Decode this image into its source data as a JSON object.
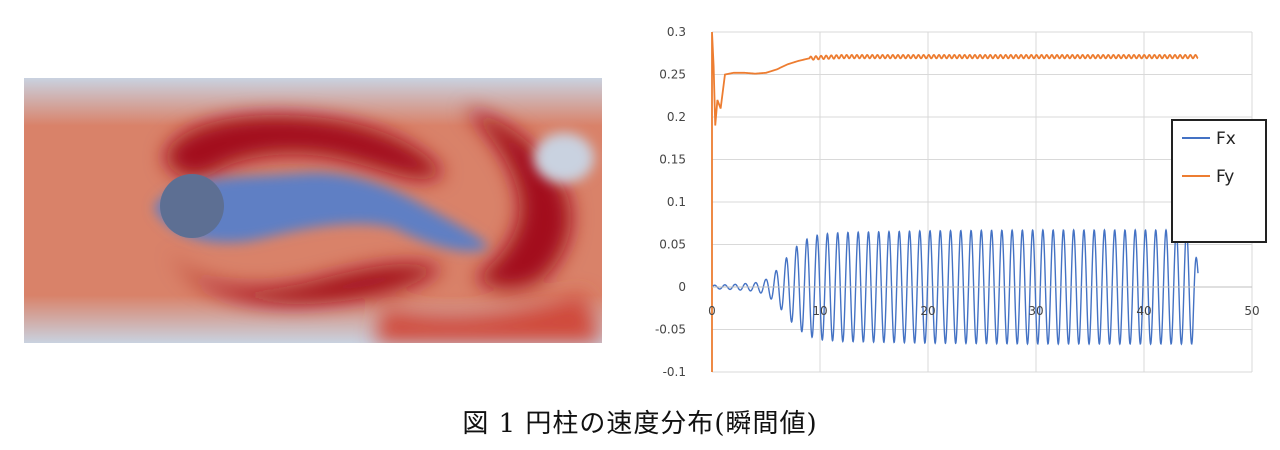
{
  "caption": "図 1  円柱の速度分布(瞬間値)",
  "flow": {
    "colors": {
      "high": "#a30f1c",
      "mid_high": "#d04a3a",
      "mid": "#d98269",
      "low_mid": "#c9d2e0",
      "low": "#5f7fc4",
      "cylinder": "#5d6f93"
    }
  },
  "chart_data": {
    "type": "line",
    "title": "",
    "xlabel": "",
    "ylabel": "",
    "xlim": [
      0,
      50
    ],
    "ylim": [
      -0.1,
      0.3
    ],
    "x_ticks": [
      "0",
      "10",
      "20",
      "30",
      "40",
      "50"
    ],
    "y_ticks": [
      "0.3",
      "0.25",
      "0.2",
      "0.15",
      "0.1",
      "0.05",
      "0",
      "-0.05",
      "-0.1"
    ],
    "grid": true,
    "legend_position": "right",
    "series": [
      {
        "name": "Fx",
        "color": "#4472c4",
        "t_end": 45,
        "period": 0.95,
        "envelope": {
          "t": [
            0,
            2,
            4,
            5,
            6,
            7,
            8,
            9,
            10,
            12,
            20,
            30,
            40,
            44.5,
            45
          ],
          "amp": [
            0.002,
            0.003,
            0.005,
            0.009,
            0.02,
            0.036,
            0.05,
            0.058,
            0.062,
            0.064,
            0.066,
            0.067,
            0.067,
            0.067,
            0.022
          ]
        }
      },
      {
        "name": "Fy",
        "color": "#ed7d31",
        "t_end": 45,
        "points": [
          [
            0,
            0.3
          ],
          [
            0.15,
            0.26
          ],
          [
            0.3,
            0.19
          ],
          [
            0.5,
            0.22
          ],
          [
            0.8,
            0.21
          ],
          [
            1.2,
            0.25
          ],
          [
            2,
            0.252
          ],
          [
            3,
            0.252
          ],
          [
            4,
            0.251
          ],
          [
            5,
            0.252
          ],
          [
            6,
            0.256
          ],
          [
            7,
            0.262
          ],
          [
            8,
            0.266
          ],
          [
            9,
            0.269
          ],
          [
            10,
            0.27
          ],
          [
            12,
            0.271
          ],
          [
            45,
            0.271
          ]
        ],
        "ripple_start": 9,
        "ripple_amp": 0.002
      }
    ]
  }
}
